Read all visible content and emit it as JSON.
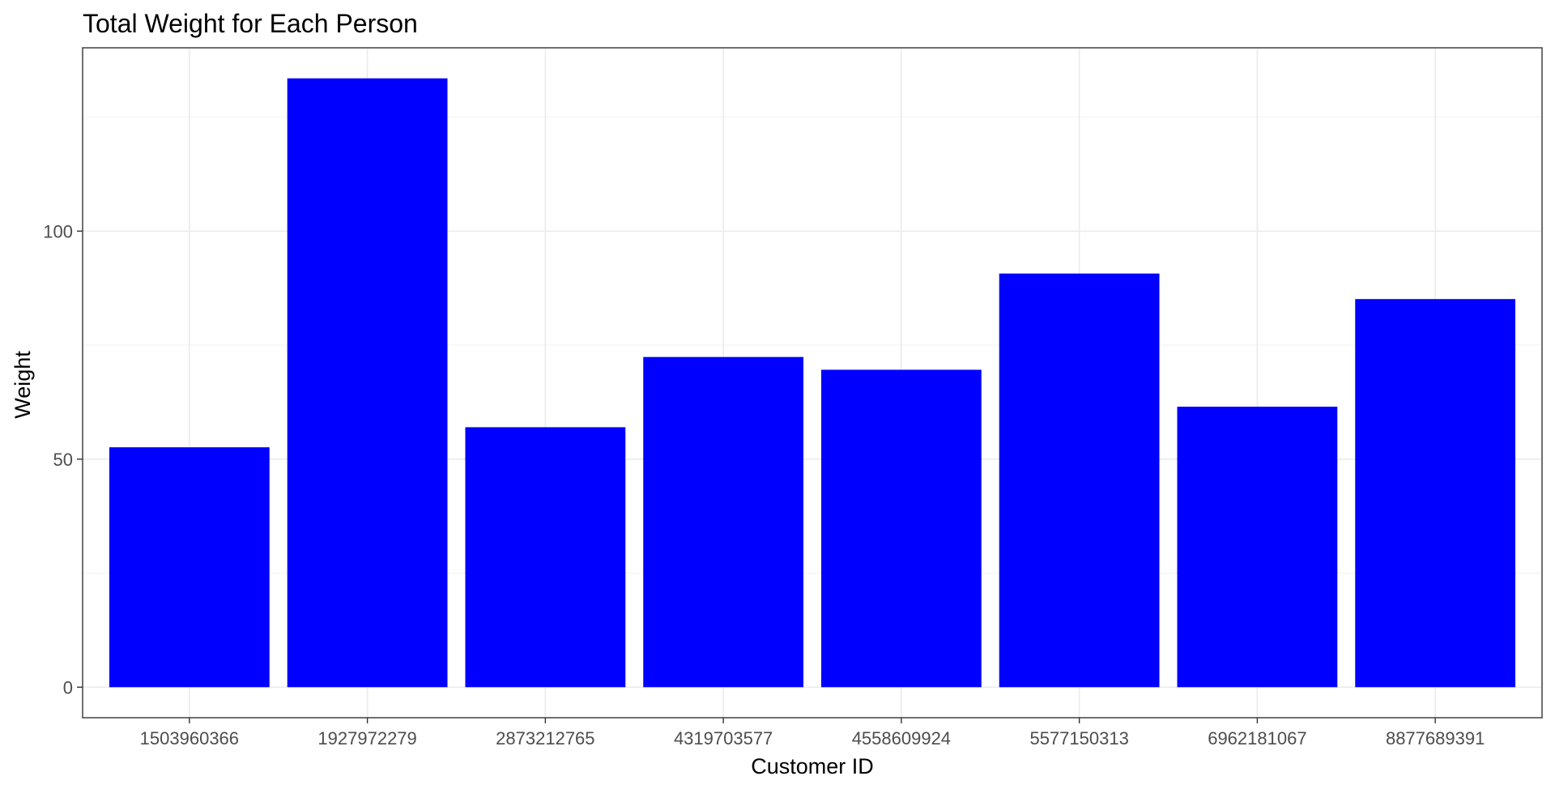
{
  "chart_data": {
    "type": "bar",
    "title": "Total Weight for Each Person",
    "xlabel": "Customer ID",
    "ylabel": "Weight",
    "categories": [
      "1503960366",
      "1927972279",
      "2873212765",
      "4319703577",
      "4558609924",
      "5577150313",
      "6962181067",
      "8877689391"
    ],
    "values": [
      52.6,
      133.5,
      57.0,
      72.4,
      69.6,
      90.7,
      61.5,
      85.1
    ],
    "ylim": [
      -6.7,
      140.2
    ],
    "yticks": [
      0,
      50,
      100
    ],
    "yticks_minor": [
      25,
      75,
      125
    ],
    "grid": true,
    "bar_color": "#0000ff"
  }
}
